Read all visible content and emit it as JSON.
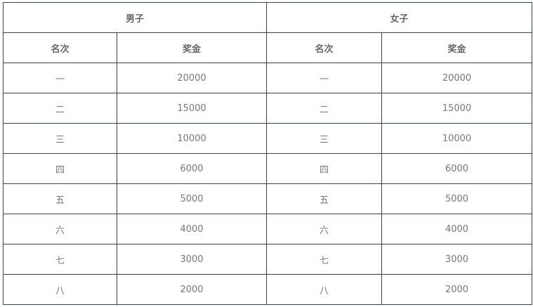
{
  "groups": [
    "男子",
    "女子"
  ],
  "columns": [
    "名次",
    "奖金"
  ],
  "rows": [
    [
      "一",
      "20000"
    ],
    [
      "二",
      "15000"
    ],
    [
      "三",
      "10000"
    ],
    [
      "四",
      "6000"
    ],
    [
      "五",
      "5000"
    ],
    [
      "六",
      "4000"
    ],
    [
      "七",
      "3000"
    ],
    [
      "八",
      "2000"
    ]
  ]
}
